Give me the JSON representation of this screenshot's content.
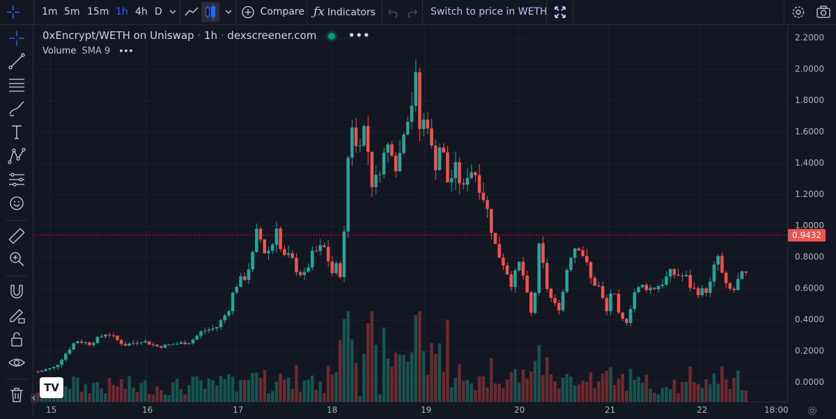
{
  "toolbar": {
    "timeframes": [
      "1m",
      "5m",
      "15m",
      "1h",
      "4h",
      "D"
    ],
    "active_timeframe": "1h",
    "compare_label": "Compare",
    "indicators_label": "Indicators",
    "switch_label": "Switch to price in WETH"
  },
  "legend": {
    "symbol": "0xEncrypt/WETH on Uniswap",
    "interval": "1h",
    "source": "dexscreener.com",
    "volume_label": "Volume",
    "volume_sma": "SMA 9"
  },
  "colors": {
    "up": "#26a69a",
    "down": "#ef5350",
    "background": "#131722",
    "accent": "#2962ff"
  },
  "left_tools": [
    "crosshair-icon",
    "trend-line-icon",
    "fib-icon",
    "brush-icon",
    "text-icon",
    "pattern-icon",
    "prediction-icon",
    "emoji-icon",
    "ruler-icon",
    "zoom-in-icon",
    "magnet-icon",
    "lock-drawing-icon",
    "lock-icon",
    "eye-icon",
    "trash-icon"
  ],
  "chart_data": {
    "type": "candlestick",
    "price_axis_ticks": [
      "2.2000",
      "2.0000",
      "1.8000",
      "1.6000",
      "1.4000",
      "1.2000",
      "1.0000",
      "0.8000",
      "0.6000",
      "0.4000",
      "0.2000",
      "0.0000"
    ],
    "ylim": [
      -0.12,
      2.28
    ],
    "time_axis_ticks": [
      "15",
      "16",
      "17",
      "18",
      "19",
      "20",
      "21",
      "22",
      "18:00"
    ],
    "last_price": "0.9432",
    "series": [
      {
        "name": "Volume",
        "type": "volume"
      }
    ],
    "close_path": [
      [
        0,
        0.07
      ],
      [
        10,
        0.1
      ],
      [
        22,
        0.27
      ],
      [
        30,
        0.25
      ],
      [
        40,
        0.32
      ],
      [
        50,
        0.24
      ],
      [
        60,
        0.27
      ],
      [
        70,
        0.23
      ],
      [
        80,
        0.25
      ],
      [
        88,
        0.26
      ],
      [
        95,
        0.33
      ],
      [
        103,
        0.35
      ],
      [
        110,
        0.46
      ],
      [
        114,
        0.62
      ],
      [
        120,
        0.68
      ],
      [
        124,
        0.8
      ],
      [
        127,
        0.98
      ],
      [
        131,
        0.84
      ],
      [
        135,
        0.85
      ],
      [
        138,
        1.02
      ],
      [
        141,
        0.8
      ],
      [
        146,
        0.8
      ],
      [
        150,
        0.72
      ],
      [
        154,
        0.68
      ],
      [
        158,
        0.8
      ],
      [
        162,
        0.85
      ],
      [
        166,
        0.86
      ],
      [
        170,
        0.7
      ],
      [
        174,
        0.76
      ],
      [
        176,
        0.62
      ],
      [
        178,
        1.2
      ],
      [
        181,
        1.72
      ],
      [
        184,
        1.5
      ],
      [
        188,
        1.65
      ],
      [
        190,
        1.56
      ],
      [
        194,
        1.22
      ],
      [
        198,
        1.4
      ],
      [
        204,
        1.55
      ],
      [
        208,
        1.36
      ],
      [
        212,
        1.68
      ],
      [
        216,
        1.78
      ],
      [
        218,
        1.98
      ],
      [
        221,
        1.6
      ],
      [
        225,
        1.72
      ],
      [
        229,
        1.36
      ],
      [
        233,
        1.55
      ],
      [
        237,
        1.28
      ],
      [
        242,
        1.36
      ],
      [
        246,
        1.22
      ],
      [
        249,
        1.38
      ],
      [
        253,
        1.34
      ],
      [
        257,
        1.22
      ],
      [
        261,
        1.05
      ],
      [
        265,
        0.85
      ],
      [
        270,
        0.75
      ],
      [
        274,
        0.63
      ],
      [
        279,
        0.78
      ],
      [
        282,
        0.6
      ],
      [
        286,
        0.4
      ],
      [
        290,
        0.88
      ],
      [
        294,
        0.62
      ],
      [
        298,
        0.5
      ],
      [
        302,
        0.48
      ],
      [
        307,
        0.8
      ],
      [
        312,
        0.9
      ],
      [
        316,
        0.8
      ],
      [
        320,
        0.65
      ],
      [
        324,
        0.62
      ],
      [
        329,
        0.45
      ],
      [
        332,
        0.62
      ],
      [
        336,
        0.42
      ],
      [
        340,
        0.38
      ],
      [
        345,
        0.58
      ],
      [
        350,
        0.62
      ],
      [
        355,
        0.6
      ],
      [
        360,
        0.63
      ],
      [
        366,
        0.7
      ],
      [
        370,
        0.69
      ],
      [
        375,
        0.67
      ],
      [
        378,
        0.6
      ],
      [
        383,
        0.58
      ],
      [
        388,
        0.6
      ],
      [
        393,
        0.82
      ],
      [
        397,
        0.62
      ],
      [
        402,
        0.58
      ],
      [
        406,
        0.68
      ],
      [
        412,
        0.69
      ],
      [
        416,
        0.82
      ],
      [
        420,
        0.86
      ],
      [
        424,
        0.84
      ],
      [
        428,
        0.88
      ],
      [
        431,
        0.96
      ],
      [
        434,
        0.94
      ]
    ]
  }
}
